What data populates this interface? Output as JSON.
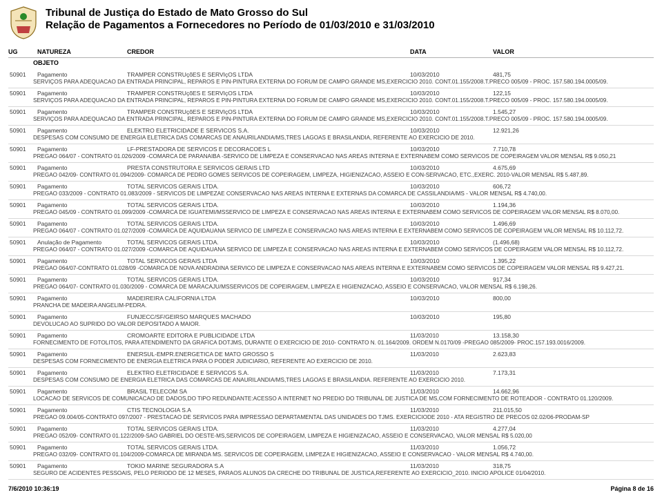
{
  "header": {
    "line1": "Tribunal de Justiça do Estado de Mato Grosso do Sul",
    "line2": "Relação de Pagamentos a Fornecedores no Período de 01/03/2010 e 31/03/2010"
  },
  "columns": {
    "ug": "UG",
    "natureza": "NATUREZA",
    "credor": "CREDOR",
    "data": "DATA",
    "valor": "VALOR",
    "objeto": "OBJETO"
  },
  "entries": [
    {
      "ug": "50901",
      "natureza": "Pagamento",
      "credor": "TRAMPER CONSTRUçõES E SERVIçOS LTDA",
      "data": "10/03/2010",
      "valor": "481,75",
      "desc": "SERVIÇOS PARA ADEQUACAO DA ENTRADA PRINCIPAL, REPAROS E PIN-PINTURA EXTERNA DO FORUM DE CAMPO GRANDE MS,EXERCICIO 2010. CONT.01.155/2008.T.PRECO 005/09 - PROC. 157.580.194.0005/09."
    },
    {
      "ug": "50901",
      "natureza": "Pagamento",
      "credor": "TRAMPER CONSTRUçõES E SERVIçOS LTDA",
      "data": "10/03/2010",
      "valor": "122,15",
      "desc": "SERVIÇOS PARA ADEQUACAO DA ENTRADA PRINCIPAL, REPAROS E PIN-PINTURA EXTERNA DO FORUM DE CAMPO GRANDE MS,EXERCICIO 2010. CONT.01.155/2008.T.PRECO 005/09 - PROC. 157.580.194.0005/09."
    },
    {
      "ug": "50901",
      "natureza": "Pagamento",
      "credor": "TRAMPER CONSTRUçõES E SERVIçOS LTDA",
      "data": "10/03/2010",
      "valor": "1.545,27",
      "desc": "SERVIÇOS PARA ADEQUACAO DA ENTRADA PRINCIPAL, REPAROS E PIN-PINTURA EXTERNA DO FORUM DE CAMPO GRANDE MS,EXERCICIO 2010. CONT.01.155/2008.T.PRECO 005/09 - PROC. 157.580.194.0005/09."
    },
    {
      "ug": "50901",
      "natureza": "Pagamento",
      "credor": "ELEKTRO ELETRICIDADE E SERVICOS S.A.",
      "data": "10/03/2010",
      "valor": "12.921,26",
      "desc": "DESPESAS COM CONSUMO DE ENERGIA ELETRICA DAS COMARCAS DE   ANAURILANDIA/MS,TRES LAGOAS E BRASILANDIA, REFERENTE AO EXERCICIO DE 2010."
    },
    {
      "ug": "50901",
      "natureza": "Pagamento",
      "credor": "LF-PRESTADORA DE SERVICOS E DECORACOES L",
      "data": "10/03/2010",
      "valor": "7.710,78",
      "desc": "PREGAO 064/07 - CONTRATO 01.026/2009 -COMARCA DE PARANAIBA -SERVICO DE LIMPEZA E CONSERVACAO NAS AREAS INTERNA E EXTERNABEM COMO SERVICOS DE COPEIRAGEM VALOR MENSAL R$ 9.050,21"
    },
    {
      "ug": "50901",
      "natureza": "Pagamento",
      "credor": "PRESTA CONSTRUTORA E SERVICOS GERAIS LTD",
      "data": "10/03/2010",
      "valor": "4.675,69",
      "desc": "PREGAO 042/09- CONTRATO 01.094/2009- COMARCA DE PEDRO GOMES SERVICOS DE COPEIRAGEM, LIMPEZA, HIGIENIZACAO, ASSEIO E CON-SERVACAO, ETC.,EXERC. 2010-VALOR MENSAL R$ 5.487,89."
    },
    {
      "ug": "50901",
      "natureza": "Pagamento",
      "credor": "TOTAL SERVICOS GERAIS LTDA.",
      "data": "10/03/2010",
      "valor": "606,72",
      "desc": "PREGAO 033/2009 - CONTRATO 01.083/2009 - SERVICOS DE LIMPEZAE CONSERVACAO NAS AREAS INTERNA E EXTERNAS DA COMARCA DE CASSILANDIA/MS - VALOR MENSAL R$ 4.740,00."
    },
    {
      "ug": "50901",
      "natureza": "Pagamento",
      "credor": "TOTAL SERVICOS GERAIS LTDA.",
      "data": "10/03/2010",
      "valor": "1.194,36",
      "desc": "PREGAO 045/09 - CONTRATO 01.099/2009 -COMARCA DE IGUATEMI/MSSERVICO DE LIMPEZA E CONSERVACAO NAS AREAS INTERNA E EXTERNABEM COMO SERVICOS DE COPEIRAGEM VALOR MENSAL R$ 8.070,00."
    },
    {
      "ug": "50901",
      "natureza": "Pagamento",
      "credor": "TOTAL SERVICOS GERAIS LTDA.",
      "data": "10/03/2010",
      "valor": "1.496,69",
      "desc": "PREGAO 064/07 - CONTRATO 01.027/2009 -COMARCA DE AQUIDAUANA SERVICO DE LIMPEZA E CONSERVACAO NAS AREAS INTERNA E EXTERNABEM COMO SERVICOS DE COPEIRAGEM VALOR MENSAL R$ 10.112,72."
    },
    {
      "ug": "50901",
      "natureza": "Anulação de Pagamento",
      "credor": "TOTAL SERVICOS GERAIS LTDA.",
      "data": "10/03/2010",
      "valor": "(1.496,68)",
      "desc": "PREGAO 064/07 - CONTRATO 01.027/2009 -COMARCA DE AQUIDAUANA SERVICO DE LIMPEZA E CONSERVACAO NAS AREAS INTERNA E EXTERNABEM COMO SERVICOS DE COPEIRAGEM VALOR MENSAL R$ 10.112,72."
    },
    {
      "ug": "50901",
      "natureza": "Pagamento",
      "credor": "TOTAL SERVICOS GERAIS LTDA",
      "data": "10/03/2010",
      "valor": "1.395,22",
      "desc": "PREGAO 064/07-CONTRATO 01.028/09 -COMARCA DE NOVA ANDRADINA SERVICO DE LIMPEZA E CONSERVACAO NAS AREAS INTERNA E EXTERNABEM COMO SERVICOS DE COPEIRAGEM VALOR MENSAL R$ 9.427,21."
    },
    {
      "ug": "50901",
      "natureza": "Pagamento",
      "credor": "TOTAL SERVICOS GERAIS LTDA.",
      "data": "10/03/2010",
      "valor": "917,34",
      "desc": "PREGAO 064/07- CONTRATO 01.030/2009 - COMARCA DE MARACAJU/MSSERVICOS DE COPEIRAGEM, LIMPEZA E HIGIENIZACAO, ASSEIO E CONSERVACAO, VALOR MENSAL R$ 6.198,26."
    },
    {
      "ug": "50901",
      "natureza": "Pagamento",
      "credor": "MADEIREIRA CALIFORNIA LTDA",
      "data": "10/03/2010",
      "valor": "800,00",
      "desc": "PRANCHA DE MADEIRA ANGELIM-PEDRA."
    },
    {
      "ug": "50901",
      "natureza": "Pagamento",
      "credor": "FUNJECC/SF/GEIRSO MARQUES MACHADO",
      "data": "10/03/2010",
      "valor": "195,80",
      "desc": "DEVOLUCAO AO SUPRIDO  DO VALOR DEPOSITADO A MAIOR."
    },
    {
      "ug": "50901",
      "natureza": "Pagamento",
      "credor": "CROMOARTE EDITORA E PUBLICIDADE LTDA",
      "data": "11/03/2010",
      "valor": "13.158,30",
      "desc": "FORNECIMENTO DE FOTOLITOS, PARA ATENDIMENTO DA GRAFICA   DOTJMS, DURANTE O EXERCICIO DE 2010- CONTRATO N. 01.164/2009. ORDEM N.0170/09 -PREGAO 085/2009- PROC.157.193.0016/2009."
    },
    {
      "ug": "50901",
      "natureza": "Pagamento",
      "credor": "ENERSUL-EMPR.ENERGETICA DE MATO GROSSO S",
      "data": "11/03/2010",
      "valor": "2.623,83",
      "desc": "DESPESAS COM FORNECIMENTO DE ENERGIA ELETRICA PARA O PODER JUDICIARIO, REFERENTE AO EXERCICIO DE  2010."
    },
    {
      "ug": "50901",
      "natureza": "Pagamento",
      "credor": "ELEKTRO ELETRICIDADE E SERVICOS S.A.",
      "data": "11/03/2010",
      "valor": "7.173,31",
      "desc": "DESPESAS COM CONSUMO DE ENERGIA ELETRICA DAS COMARCAS DE   ANAURILANDIA/MS,TRES LAGOAS E BRASILANDIA. REFERENTE AO EXERCICIO 2010."
    },
    {
      "ug": "50901",
      "natureza": "Pagamento",
      "credor": "BRASIL TELECOM SA",
      "data": "11/03/2010",
      "valor": "14.662,96",
      "desc": "LOCACAO DE SERVICOS DE COMUNICACAO DE DADOS,DO TIPO REDUNDANTE:ACESSO A INTERNET NO PREDIO DO TRIBUNAL DE JUSTICA DE MS,COM FORNECIMENTO DE ROTEADOR - CONTRATO 01.120/2009."
    },
    {
      "ug": "50901",
      "natureza": "Pagamento",
      "credor": "CTIS TECNOLOGIA S.A",
      "data": "11/03/2010",
      "valor": "211.015,50",
      "desc": "PREGAO 09.004/05-CONTRATO 097/2007 - PRESTACAO DE SERVICOS  PARA IMPRESSAO DEPARTAMENTAL DAS UNIDADES DO TJMS. EXERCICIODE 2010 - ATA REGISTRO DE PRECOS 02.02/06-PRODAM-SP"
    },
    {
      "ug": "50901",
      "natureza": "Pagamento",
      "credor": "TOTAL SERVICOS GERAIS LTDA.",
      "data": "11/03/2010",
      "valor": "4.277,04",
      "desc": "PREGAO 052/09- CONTRATO 01.122/2009-SAO GABRIEL DO OESTE-MS,SERVICOS DE COPEIRAGEM, LIMPEZA E HIGIENIZACAO, ASSEIO E CONSERVACAO, VALOR MENSAL R$ 5.020,00"
    },
    {
      "ug": "50901",
      "natureza": "Pagamento",
      "credor": "TOTAL SERVICOS GERAIS LTDA.",
      "data": "11/03/2010",
      "valor": "1.056,72",
      "desc": "PREGAO 032/09- CONTRATO 01.104/2009-COMARCA DE MIRANDA MS.  SERVICOS DE COPEIRAGEM, LIMPEZA E HIGIENIZACAO, ASSEIO E CONSERVACAO - VALOR MENSAL R$ 4.740,00."
    },
    {
      "ug": "50901",
      "natureza": "Pagamento",
      "credor": "TOKIO MARINE SEGURADORA S.A",
      "data": "11/03/2010",
      "valor": "318,75",
      "desc": "SEGURO DE ACIDENTES PESSOAIS, PELO PERIODO DE 12 MESES, PARAOS ALUNOS DA CRECHE DO TRIBUNAL DE JUSTICA,REFERENTE AO EXERCICIO_2010. INICIO APOLICE 01/04/2010."
    }
  ],
  "footer": {
    "left": "7/6/2010 10:36:19",
    "right": "Página 8 de 16"
  },
  "colors": {
    "border": "#b0b0b0",
    "rowline": "#d8d8d8",
    "text": "#000000",
    "subtext": "#3a3a3a"
  }
}
